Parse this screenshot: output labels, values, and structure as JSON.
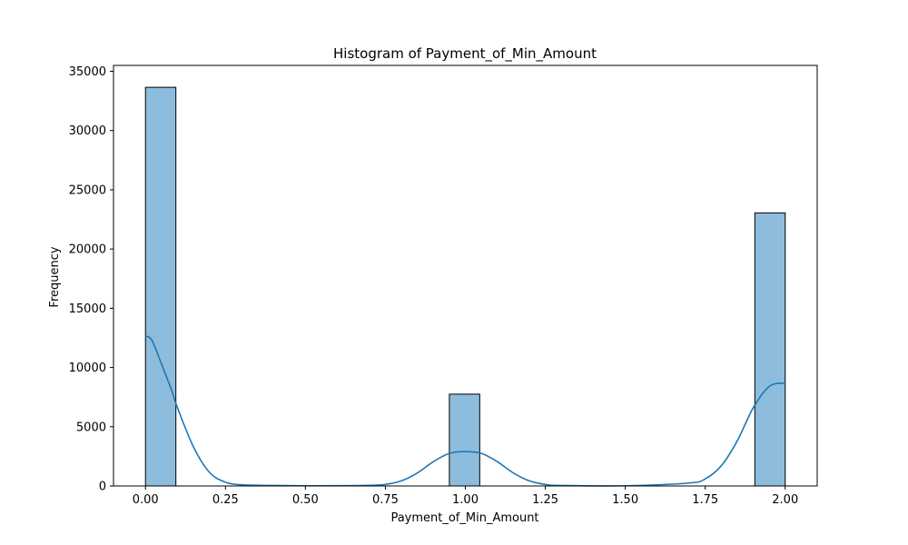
{
  "chart_data": {
    "type": "bar",
    "title": "Histogram of Payment_of_Min_Amount",
    "xlabel": "Payment_of_Min_Amount",
    "ylabel": "Frequency",
    "xlim": [
      -0.1,
      2.1
    ],
    "ylim": [
      0,
      35500
    ],
    "x_ticks": [
      "0.00",
      "0.25",
      "0.50",
      "0.75",
      "1.00",
      "1.25",
      "1.50",
      "1.75",
      "2.00"
    ],
    "y_ticks": [
      "0",
      "5000",
      "10000",
      "15000",
      "20000",
      "25000",
      "30000",
      "35000"
    ],
    "bins": [
      {
        "x0": 0.0,
        "x1": 0.095,
        "count": 33650
      },
      {
        "x0": 0.95,
        "x1": 1.045,
        "count": 7750
      },
      {
        "x0": 1.905,
        "x1": 2.0,
        "count": 23050
      }
    ],
    "kde": {
      "x": [
        0.0,
        0.02,
        0.05,
        0.08,
        0.1,
        0.15,
        0.2,
        0.25,
        0.3,
        0.4,
        0.5,
        0.6,
        0.7,
        0.75,
        0.8,
        0.85,
        0.9,
        0.95,
        1.0,
        1.05,
        1.1,
        1.15,
        1.2,
        1.25,
        1.3,
        1.5,
        1.7,
        1.75,
        1.8,
        1.85,
        1.9,
        1.95,
        2.0
      ],
      "y": [
        12650,
        12300,
        10300,
        8200,
        6600,
        3300,
        1150,
        320,
        100,
        40,
        20,
        25,
        50,
        130,
        430,
        1100,
        2050,
        2750,
        2900,
        2750,
        2050,
        1100,
        430,
        130,
        40,
        20,
        250,
        600,
        1700,
        3800,
        6600,
        8400,
        8700
      ]
    },
    "colors": {
      "bar_fill": "#8ebcdc",
      "bar_edge": "#000000",
      "kde_line": "#1f77b4"
    },
    "grid": false
  }
}
